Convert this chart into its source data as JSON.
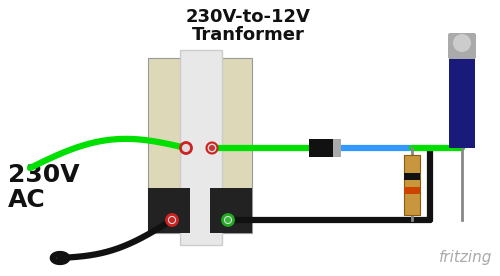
{
  "bg_color": "#ffffff",
  "title_line1": "230V-to-12V",
  "title_line2": "Tranformer",
  "label_230v": "230V",
  "label_ac": "AC",
  "fritzing_text": "fritzing",
  "title_fontsize": 13,
  "label_fontsize": 18,
  "fritzing_fontsize": 11,
  "transformer_body_color": "#ddd8b8",
  "transformer_core_color": "#e8e8e8",
  "transformer_dark": "#222222",
  "wire_green": "#00e000",
  "wire_black": "#111111",
  "wire_blue": "#3399ff",
  "wire_gray": "#888888",
  "diode_body": "#111111",
  "diode_band": "#aaaaaa",
  "capacitor_body": "#1a1a7a",
  "capacitor_top": "#aaaaaa",
  "resistor_body": "#c8963c",
  "resistor_band1": "#111111",
  "resistor_band2": "#cc4400",
  "conn_red": "#cc2222",
  "conn_green": "#22aa22",
  "conn_red2": "#dd3333"
}
